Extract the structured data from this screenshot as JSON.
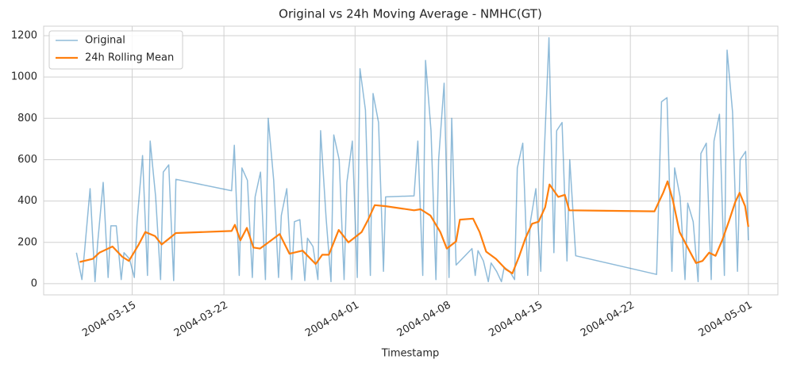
{
  "chart_data": {
    "type": "line",
    "title": "Original vs 24h Moving Average - NMHC(GT)",
    "x_label": "Timestamp",
    "xlim": [
      "2004-03-08 06:00",
      "2004-05-03 06:00"
    ],
    "xticks": [
      "2004-03-15",
      "2004-03-22",
      "2004-04-01",
      "2004-04-08",
      "2004-04-15",
      "2004-04-22",
      "2004-05-01"
    ],
    "ylim": [
      -54,
      1246
    ],
    "yticks": [
      0,
      200,
      400,
      600,
      800,
      1000,
      1200
    ],
    "grid": true,
    "legend": "upper left",
    "series": [
      {
        "name": "Original",
        "color": "#1f77b4",
        "alpha": 0.5,
        "width": 1.5,
        "x": [
          "2004-03-10 18:00",
          "2004-03-11 04:00",
          "2004-03-11 09:00",
          "2004-03-11 19:00",
          "2004-03-12 04:00",
          "2004-03-12 09:00",
          "2004-03-12 19:00",
          "2004-03-13 04:00",
          "2004-03-13 09:00",
          "2004-03-13 19:00",
          "2004-03-14 04:00",
          "2004-03-14 09:00",
          "2004-03-14 19:00",
          "2004-03-15 04:00",
          "2004-03-15 09:00",
          "2004-03-15 19:00",
          "2004-03-16 04:00",
          "2004-03-16 09:00",
          "2004-03-16 19:00",
          "2004-03-17 04:00",
          "2004-03-17 09:00",
          "2004-03-17 19:00",
          "2004-03-18 04:00",
          "2004-03-18 08:00",
          "2004-03-22 14:00",
          "2004-03-22 19:00",
          "2004-03-23 04:00",
          "2004-03-23 09:00",
          "2004-03-23 19:00",
          "2004-03-24 04:00",
          "2004-03-24 09:00",
          "2004-03-24 19:00",
          "2004-03-25 04:00",
          "2004-03-25 09:00",
          "2004-03-25 19:00",
          "2004-03-26 04:00",
          "2004-03-26 09:00",
          "2004-03-26 19:00",
          "2004-03-27 04:00",
          "2004-03-27 09:00",
          "2004-03-27 19:00",
          "2004-03-28 04:00",
          "2004-03-28 09:00",
          "2004-03-28 19:00",
          "2004-03-29 04:00",
          "2004-03-29 09:00",
          "2004-03-29 19:00",
          "2004-03-30 04:00",
          "2004-03-30 09:00",
          "2004-03-30 19:00",
          "2004-03-31 04:00",
          "2004-03-31 09:00",
          "2004-03-31 19:00",
          "2004-04-01 04:00",
          "2004-04-01 09:00",
          "2004-04-01 19:00",
          "2004-04-02 04:00",
          "2004-04-02 09:00",
          "2004-04-02 19:00",
          "2004-04-03 04:00",
          "2004-04-03 08:00",
          "2004-04-05 12:00",
          "2004-04-05 19:00",
          "2004-04-06 04:00",
          "2004-04-06 09:00",
          "2004-04-06 19:00",
          "2004-04-07 04:00",
          "2004-04-07 09:00",
          "2004-04-07 19:00",
          "2004-04-08 04:00",
          "2004-04-08 09:00",
          "2004-04-08 17:00",
          "2004-04-09 22:00",
          "2004-04-10 04:00",
          "2004-04-10 09:00",
          "2004-04-10 19:00",
          "2004-04-11 04:00",
          "2004-04-11 09:00",
          "2004-04-11 19:00",
          "2004-04-12 04:00",
          "2004-04-12 09:00",
          "2004-04-12 19:00",
          "2004-04-13 04:00",
          "2004-04-13 09:00",
          "2004-04-13 19:00",
          "2004-04-14 04:00",
          "2004-04-14 09:00",
          "2004-04-14 19:00",
          "2004-04-15 04:00",
          "2004-04-15 09:00",
          "2004-04-15 19:00",
          "2004-04-16 04:00",
          "2004-04-16 09:00",
          "2004-04-16 19:00",
          "2004-04-17 04:00",
          "2004-04-17 09:00",
          "2004-04-17 20:00",
          "2004-04-24 00:00",
          "2004-04-24 09:00",
          "2004-04-24 19:00",
          "2004-04-25 04:00",
          "2004-04-25 09:00",
          "2004-04-25 19:00",
          "2004-04-26 04:00",
          "2004-04-26 09:00",
          "2004-04-26 19:00",
          "2004-04-27 04:00",
          "2004-04-27 09:00",
          "2004-04-27 19:00",
          "2004-04-28 04:00",
          "2004-04-28 09:00",
          "2004-04-28 19:00",
          "2004-04-29 04:00",
          "2004-04-29 09:00",
          "2004-04-29 19:00",
          "2004-04-30 04:00",
          "2004-04-30 09:00",
          "2004-04-30 19:00",
          "2004-05-01 00:00"
        ],
        "values": [
          150,
          20,
          160,
          460,
          10,
          200,
          490,
          30,
          280,
          280,
          20,
          150,
          120,
          30,
          300,
          620,
          40,
          690,
          420,
          20,
          540,
          575,
          15,
          505,
          450,
          670,
          40,
          560,
          500,
          30,
          420,
          540,
          20,
          800,
          500,
          30,
          330,
          460,
          20,
          300,
          310,
          15,
          220,
          180,
          20,
          740,
          320,
          10,
          720,
          600,
          20,
          490,
          690,
          30,
          1040,
          840,
          40,
          920,
          780,
          60,
          420,
          425,
          690,
          40,
          1080,
          740,
          20,
          600,
          970,
          30,
          800,
          90,
          170,
          40,
          160,
          110,
          10,
          100,
          60,
          10,
          80,
          60,
          20,
          560,
          680,
          40,
          300,
          460,
          60,
          540,
          1190,
          150,
          740,
          780,
          110,
          600,
          135,
          45,
          880,
          900,
          60,
          560,
          420,
          20,
          390,
          300,
          10,
          630,
          680,
          20,
          690,
          820,
          40,
          1130,
          830,
          60,
          600,
          640,
          210
        ]
      },
      {
        "name": "24h Rolling Mean",
        "color": "#ff7f0e",
        "alpha": 1,
        "width": 2.2,
        "x": [
          "2004-03-11 00:00",
          "2004-03-12 00:00",
          "2004-03-12 12:00",
          "2004-03-13 12:00",
          "2004-03-14 06:00",
          "2004-03-14 18:00",
          "2004-03-15 12:00",
          "2004-03-16 00:00",
          "2004-03-16 18:00",
          "2004-03-17 06:00",
          "2004-03-17 18:00",
          "2004-03-18 08:00",
          "2004-03-22 14:00",
          "2004-03-22 20:00",
          "2004-03-23 06:00",
          "2004-03-23 18:00",
          "2004-03-24 06:00",
          "2004-03-24 18:00",
          "2004-03-25 12:00",
          "2004-03-26 06:00",
          "2004-03-27 00:00",
          "2004-03-28 00:00",
          "2004-03-29 00:00",
          "2004-03-29 12:00",
          "2004-03-30 00:00",
          "2004-03-30 18:00",
          "2004-03-31 12:00",
          "2004-04-01 12:00",
          "2004-04-02 00:00",
          "2004-04-02 12:00",
          "2004-04-03 08:00",
          "2004-04-05 12:00",
          "2004-04-06 00:00",
          "2004-04-06 18:00",
          "2004-04-07 12:00",
          "2004-04-08 00:00",
          "2004-04-08 17:00",
          "2004-04-09 00:00",
          "2004-04-10 00:00",
          "2004-04-10 12:00",
          "2004-04-11 00:00",
          "2004-04-11 18:00",
          "2004-04-12 12:00",
          "2004-04-13 00:00",
          "2004-04-13 12:00",
          "2004-04-14 00:00",
          "2004-04-14 12:00",
          "2004-04-15 00:00",
          "2004-04-15 12:00",
          "2004-04-15 20:00",
          "2004-04-16 12:00",
          "2004-04-17 00:00",
          "2004-04-17 08:00",
          "2004-04-23 20:00",
          "2004-04-24 12:00",
          "2004-04-24 20:00",
          "2004-04-25 06:00",
          "2004-04-25 18:00",
          "2004-04-26 12:00",
          "2004-04-27 00:00",
          "2004-04-27 12:00",
          "2004-04-28 00:00",
          "2004-04-28 12:00",
          "2004-04-29 00:00",
          "2004-04-29 12:00",
          "2004-04-30 00:00",
          "2004-04-30 08:00",
          "2004-04-30 18:00",
          "2004-05-01 00:00"
        ],
        "values": [
          105,
          120,
          150,
          180,
          130,
          110,
          190,
          250,
          230,
          190,
          215,
          245,
          255,
          285,
          210,
          270,
          175,
          170,
          205,
          240,
          145,
          160,
          95,
          140,
          140,
          260,
          200,
          250,
          310,
          380,
          375,
          355,
          360,
          330,
          250,
          170,
          205,
          310,
          315,
          250,
          155,
          120,
          70,
          50,
          130,
          220,
          290,
          300,
          370,
          480,
          420,
          430,
          355,
          350,
          440,
          495,
          400,
          250,
          160,
          100,
          110,
          150,
          135,
          210,
          300,
          395,
          440,
          375,
          275
        ]
      }
    ]
  }
}
